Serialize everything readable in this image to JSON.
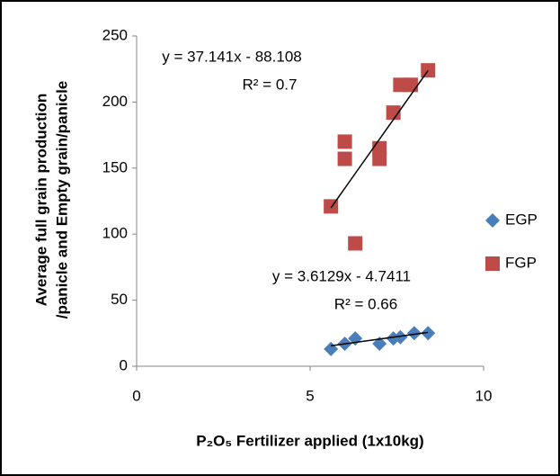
{
  "chart_data": {
    "type": "scatter",
    "xlabel": "P₂O₅ Fertilizer applied (1x10kg)",
    "ylabel": [
      "Average full grain production",
      "/panicle and Empty grain/panicle"
    ],
    "xlim": [
      0,
      10
    ],
    "xticks": [
      0,
      5,
      10
    ],
    "ylim": [
      0,
      250
    ],
    "yticks": [
      0,
      50,
      100,
      150,
      200,
      250
    ],
    "grid": false,
    "legend": "right",
    "series": [
      {
        "name": "EGP",
        "color": "#4a7ebb",
        "marker": "diamond",
        "x": [
          5.6,
          6.0,
          6.3,
          7.0,
          7.4,
          7.6,
          8.0,
          8.4
        ],
        "values": [
          13,
          17,
          21,
          17,
          21,
          22,
          25,
          25
        ],
        "trendline": {
          "slope": 3.6129,
          "intercept": -4.7411,
          "label": "y = 3.6129x - 4.7411",
          "r2_label": "R² = 0.66"
        }
      },
      {
        "name": "FGP",
        "color": "#be4b48",
        "marker": "square",
        "x": [
          5.6,
          6.0,
          6.0,
          6.3,
          7.0,
          7.0,
          7.4,
          7.6,
          7.9,
          8.4
        ],
        "values": [
          121,
          170,
          157,
          93,
          165,
          157,
          192,
          213,
          213,
          224
        ],
        "trendline": {
          "slope": 37.141,
          "intercept": -88.108,
          "label": "y = 37.141x - 88.108",
          "r2_label": "R² = 0.7"
        }
      }
    ]
  }
}
